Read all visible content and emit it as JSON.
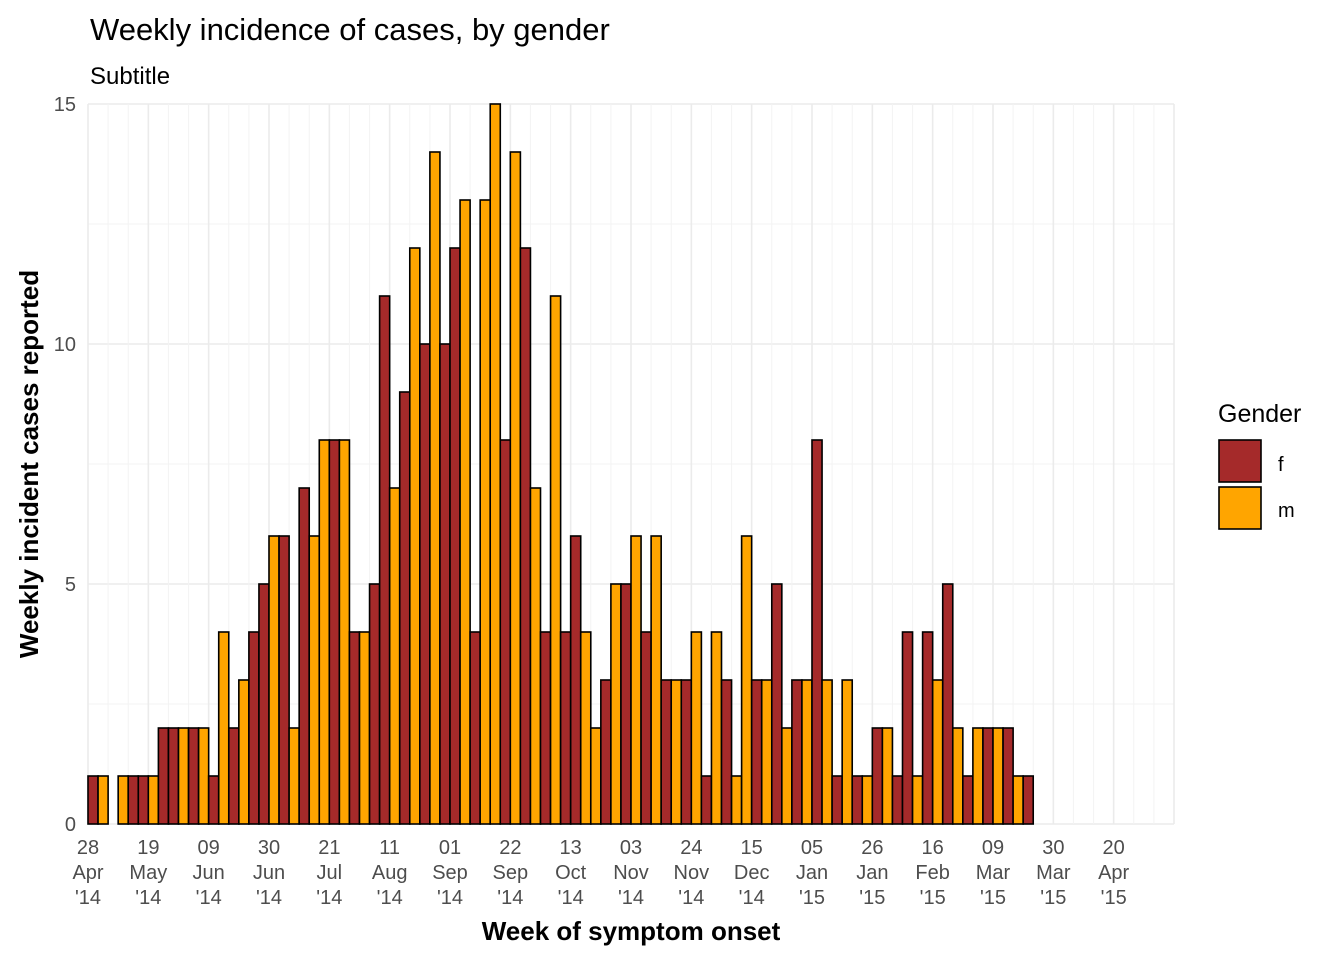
{
  "chart_data": {
    "type": "bar",
    "title": "Weekly incidence of cases, by gender",
    "subtitle": "Subtitle",
    "xlabel": "Week of symptom onset",
    "ylabel": "Weekly incident cases reported",
    "ylim": [
      0,
      15
    ],
    "y_ticks": [
      "0",
      "5",
      "10",
      "15"
    ],
    "x_ticks": [
      {
        "day": "28",
        "month": "Apr",
        "year": "'14"
      },
      {
        "day": "19",
        "month": "May",
        "year": "'14"
      },
      {
        "day": "09",
        "month": "Jun",
        "year": "'14"
      },
      {
        "day": "30",
        "month": "Jun",
        "year": "'14"
      },
      {
        "day": "21",
        "month": "Jul",
        "year": "'14"
      },
      {
        "day": "11",
        "month": "Aug",
        "year": "'14"
      },
      {
        "day": "01",
        "month": "Sep",
        "year": "'14"
      },
      {
        "day": "22",
        "month": "Sep",
        "year": "'14"
      },
      {
        "day": "13",
        "month": "Oct",
        "year": "'14"
      },
      {
        "day": "03",
        "month": "Nov",
        "year": "'14"
      },
      {
        "day": "24",
        "month": "Nov",
        "year": "'14"
      },
      {
        "day": "15",
        "month": "Dec",
        "year": "'14"
      },
      {
        "day": "05",
        "month": "Jan",
        "year": "'15"
      },
      {
        "day": "26",
        "month": "Jan",
        "year": "'15"
      },
      {
        "day": "16",
        "month": "Feb",
        "year": "'15"
      },
      {
        "day": "09",
        "month": "Mar",
        "year": "'15"
      },
      {
        "day": "30",
        "month": "Mar",
        "year": "'15"
      },
      {
        "day": "20",
        "month": "Apr",
        "year": "'15"
      }
    ],
    "grid": true,
    "legend": {
      "title": "Gender",
      "placement": "right"
    },
    "series": [
      {
        "name": "f",
        "color": "#A52A2A",
        "values": [
          1,
          0,
          0,
          0,
          1,
          1,
          0,
          2,
          2,
          2,
          1,
          2,
          4,
          5,
          2,
          6,
          7,
          8,
          4,
          5,
          11,
          9,
          10,
          10,
          12,
          4,
          8,
          12,
          4,
          4,
          6,
          3,
          5,
          4,
          3,
          3,
          1,
          3,
          0,
          3,
          5,
          3,
          8,
          1,
          1,
          2,
          1,
          4,
          4,
          5,
          1,
          2,
          2,
          1
        ]
      },
      {
        "name": "m",
        "color": "#FFA500",
        "values": [
          1,
          0,
          0,
          1,
          0,
          1,
          0,
          0,
          2,
          2,
          0,
          4,
          3,
          0,
          6,
          2,
          6,
          8,
          8,
          4,
          9,
          7,
          12,
          14,
          13,
          13,
          15,
          14,
          7,
          11,
          4,
          2,
          5,
          6,
          6,
          3,
          4,
          4,
          1,
          6,
          3,
          2,
          3,
          3,
          3,
          1,
          2,
          1,
          3,
          0,
          2,
          2,
          2,
          1
        ]
      }
    ],
    "bar_order": [
      {
        "s": "f",
        "w": 0
      },
      {
        "s": "m",
        "w": 0
      },
      {
        "s": "f",
        "w": 1
      },
      {
        "s": "m",
        "w": 3
      },
      {
        "s": "f",
        "w": 4
      },
      {
        "s": "f",
        "w": 5
      },
      {
        "s": "m",
        "w": 5
      },
      {
        "s": "f",
        "w": 7
      },
      {
        "s": "f",
        "w": 8
      },
      {
        "s": "m",
        "w": 8
      },
      {
        "s": "f",
        "w": 9
      },
      {
        "s": "m",
        "w": 9
      },
      {
        "s": "f",
        "w": 10
      },
      {
        "s": "m",
        "w": 11
      },
      {
        "s": "f",
        "w": 11
      },
      {
        "s": "m",
        "w": 12
      },
      {
        "s": "f",
        "w": 12
      },
      {
        "s": "f",
        "w": 13
      },
      {
        "s": "m",
        "w": 14
      },
      {
        "s": "f",
        "w": 15
      },
      {
        "s": "m",
        "w": 15
      },
      {
        "s": "f",
        "w": 16
      },
      {
        "s": "m",
        "w": 16
      },
      {
        "s": "m",
        "w": 17
      },
      {
        "s": "f",
        "w": 17
      },
      {
        "s": "m",
        "w": 18
      },
      {
        "s": "f",
        "w": 18
      },
      {
        "s": "m",
        "w": 19
      },
      {
        "s": "f",
        "w": 19
      },
      {
        "s": "f",
        "w": 20
      },
      {
        "s": "m",
        "w": 21
      },
      {
        "s": "f",
        "w": 21
      },
      {
        "s": "m",
        "w": 22
      },
      {
        "s": "f",
        "w": 22
      },
      {
        "s": "m",
        "w": 23
      },
      {
        "s": "f",
        "w": 23
      },
      {
        "s": "f",
        "w": 24
      },
      {
        "s": "m",
        "w": 24
      },
      {
        "s": "f",
        "w": 25
      },
      {
        "s": "m",
        "w": 25
      },
      {
        "s": "m",
        "w": 26
      },
      {
        "s": "f",
        "w": 26
      },
      {
        "s": "m",
        "w": 27
      },
      {
        "s": "f",
        "w": 27
      },
      {
        "s": "m",
        "w": 28
      },
      {
        "s": "f",
        "w": 28
      },
      {
        "s": "m",
        "w": 29
      },
      {
        "s": "f",
        "w": 29
      },
      {
        "s": "f",
        "w": 30
      },
      {
        "s": "m",
        "w": 30
      },
      {
        "s": "m",
        "w": 31
      },
      {
        "s": "f",
        "w": 31
      },
      {
        "s": "m",
        "w": 32
      },
      {
        "s": "f",
        "w": 32
      },
      {
        "s": "m",
        "w": 33
      },
      {
        "s": "f",
        "w": 33
      },
      {
        "s": "m",
        "w": 34
      },
      {
        "s": "f",
        "w": 34
      },
      {
        "s": "m",
        "w": 35
      },
      {
        "s": "f",
        "w": 35
      },
      {
        "s": "m",
        "w": 36
      },
      {
        "s": "f",
        "w": 36
      },
      {
        "s": "m",
        "w": 37
      },
      {
        "s": "f",
        "w": 37
      },
      {
        "s": "m",
        "w": 38
      },
      {
        "s": "m",
        "w": 39
      },
      {
        "s": "f",
        "w": 39
      },
      {
        "s": "m",
        "w": 40
      },
      {
        "s": "f",
        "w": 40
      },
      {
        "s": "m",
        "w": 41
      },
      {
        "s": "f",
        "w": 41
      },
      {
        "s": "m",
        "w": 42
      },
      {
        "s": "f",
        "w": 42
      },
      {
        "s": "m",
        "w": 43
      },
      {
        "s": "f",
        "w": 43
      },
      {
        "s": "m",
        "w": 44
      },
      {
        "s": "f",
        "w": 44
      },
      {
        "s": "m",
        "w": 45
      },
      {
        "s": "f",
        "w": 45
      },
      {
        "s": "m",
        "w": 46
      },
      {
        "s": "f",
        "w": 46
      },
      {
        "s": "f",
        "w": 47
      },
      {
        "s": "m",
        "w": 47
      },
      {
        "s": "f",
        "w": 48
      },
      {
        "s": "m",
        "w": 48
      },
      {
        "s": "f",
        "w": 49
      },
      {
        "s": "m",
        "w": 50
      },
      {
        "s": "f",
        "w": 50
      },
      {
        "s": "m",
        "w": 51
      },
      {
        "s": "f",
        "w": 51
      },
      {
        "s": "m",
        "w": 52
      },
      {
        "s": "f",
        "w": 52
      },
      {
        "s": "m",
        "w": 53
      },
      {
        "s": "f",
        "w": 53
      }
    ]
  }
}
